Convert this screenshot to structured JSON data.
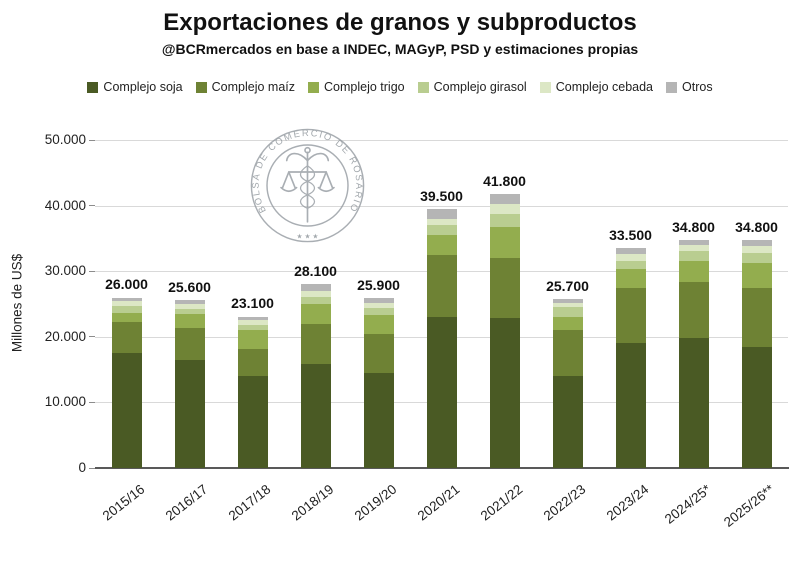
{
  "header": {
    "title": "Exportaciones de granos y subproductos",
    "subtitle": "@BCRmercados en base a INDEC, MAGyP, PSD y estimaciones propias"
  },
  "watermark": {
    "ring_text": "BOLSA DE COMERCIO DE ROSARIO"
  },
  "chart_data": {
    "type": "bar",
    "stacked": true,
    "title": "Exportaciones de granos y subproductos",
    "subtitle": "@BCRmercados en base a INDEC, MAGyP, PSD y estimaciones propias",
    "ylabel": "Millones de US$",
    "xlabel": "",
    "ylim": [
      0,
      50000
    ],
    "grid": true,
    "legend_position": "top",
    "yticks": [
      {
        "value": 0,
        "label": "0"
      },
      {
        "value": 10000,
        "label": "10.000"
      },
      {
        "value": 20000,
        "label": "20.000"
      },
      {
        "value": 30000,
        "label": "30.000"
      },
      {
        "value": 40000,
        "label": "40.000"
      },
      {
        "value": 50000,
        "label": "50.000"
      }
    ],
    "categories": [
      "2015/16",
      "2016/17",
      "2017/18",
      "2018/19",
      "2019/20",
      "2020/21",
      "2021/22",
      "2022/23",
      "2023/24",
      "2024/25*",
      "2025/26**"
    ],
    "totals": [
      26000,
      25600,
      23100,
      28100,
      25900,
      39500,
      41800,
      25700,
      33500,
      34800,
      34800
    ],
    "totals_labels": [
      "26.000",
      "25.600",
      "23.100",
      "28.100",
      "25.900",
      "39.500",
      "41.800",
      "25.700",
      "33.500",
      "34.800",
      "34.800"
    ],
    "series": [
      {
        "name": "Complejo soja",
        "color": "#4a5a24",
        "values": [
          17600,
          16400,
          14000,
          15900,
          14500,
          23000,
          22800,
          14000,
          19000,
          19800,
          18500
        ]
      },
      {
        "name": "Complejo maíz",
        "color": "#6e8234",
        "values": [
          4600,
          4900,
          4200,
          6000,
          6000,
          9500,
          9200,
          7000,
          8500,
          8500,
          9000
        ]
      },
      {
        "name": "Complejo trigo",
        "color": "#93ad4e",
        "values": [
          1500,
          2200,
          2800,
          3100,
          2900,
          3000,
          4700,
          2000,
          2800,
          3300,
          3700
        ]
      },
      {
        "name": "Complejo girasol",
        "color": "#b9cd90",
        "values": [
          1000,
          800,
          800,
          1000,
          1000,
          1500,
          2000,
          1500,
          1300,
          1500,
          1600
        ]
      },
      {
        "name": "Complejo cebada",
        "color": "#dce7c5",
        "values": [
          700,
          700,
          700,
          1000,
          800,
          1000,
          1500,
          700,
          1000,
          900,
          1000
        ]
      },
      {
        "name": "Otros",
        "color": "#b5b5b5",
        "values": [
          600,
          600,
          600,
          1100,
          700,
          1500,
          1600,
          500,
          900,
          800,
          1000
        ]
      }
    ]
  }
}
